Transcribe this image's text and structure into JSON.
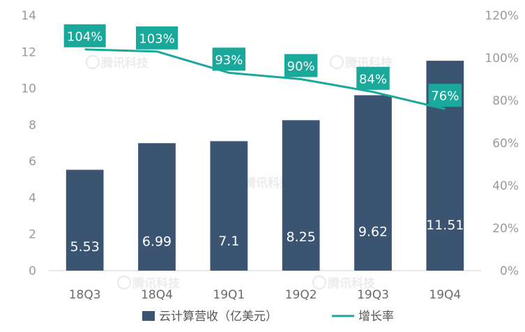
{
  "chart_data": {
    "type": "bar",
    "categories": [
      "18Q3",
      "18Q4",
      "19Q1",
      "19Q2",
      "19Q3",
      "19Q4"
    ],
    "series": [
      {
        "name": "云计算营收（亿美元）",
        "type": "bar",
        "axis": "left",
        "values": [
          5.53,
          6.99,
          7.1,
          8.25,
          9.62,
          11.51
        ],
        "labels": [
          "5.53",
          "6.99",
          "7.1",
          "8.25",
          "9.62",
          "11.51"
        ],
        "color": "#3b5472"
      },
      {
        "name": "增长率",
        "type": "line",
        "axis": "right",
        "values": [
          104,
          103,
          93,
          90,
          84,
          76
        ],
        "labels": [
          "104%",
          "103%",
          "93%",
          "90%",
          "84%",
          "76%"
        ],
        "color": "#1aa89b"
      }
    ],
    "y_left": {
      "range": [
        0,
        14
      ],
      "ticks": [
        "0",
        "2",
        "4",
        "6",
        "8",
        "10",
        "12",
        "14"
      ]
    },
    "y_right": {
      "range": [
        0,
        120
      ],
      "ticks": [
        "0%",
        "20%",
        "40%",
        "60%",
        "80%",
        "100%",
        "120%"
      ]
    },
    "grid": false,
    "legend_position": "bottom",
    "watermark": "腾讯科技"
  }
}
